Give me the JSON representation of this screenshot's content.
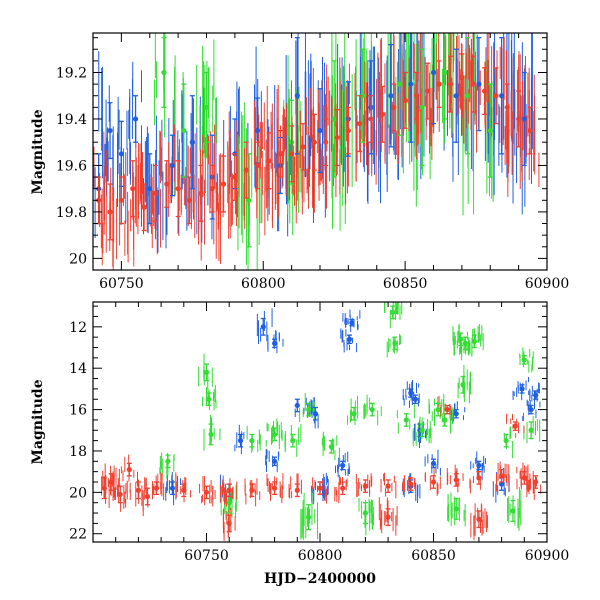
{
  "chart_data": [
    {
      "type": "scatter",
      "panel": "top",
      "xlabel": "",
      "ylabel": "Magnitude",
      "xlim": [
        60740,
        60900
      ],
      "ylim": [
        20.05,
        19.03
      ],
      "y_inverted": true,
      "xticks": [
        60750,
        60800,
        60850,
        60900
      ],
      "yticks": [
        19.2,
        19.4,
        19.6,
        19.8,
        20
      ],
      "ytick_labels": [
        "19.2",
        "19.4",
        "19.6",
        "19.8",
        "20"
      ],
      "grid": false,
      "series": [
        {
          "color": "#2060e0",
          "points": [
            [
              60742,
              19.7,
              0.15
            ],
            [
              60746,
              19.45,
              0.12
            ],
            [
              60750,
              19.55,
              0.14
            ],
            [
              60755,
              19.4,
              0.1
            ],
            [
              60760,
              19.7,
              0.15
            ],
            [
              60768,
              19.6,
              0.13
            ],
            [
              60775,
              19.5,
              0.2
            ],
            [
              60782,
              19.65,
              0.18
            ],
            [
              60790,
              19.55,
              0.15
            ],
            [
              60798,
              19.45,
              0.14
            ],
            [
              60806,
              19.6,
              0.12
            ],
            [
              60812,
              19.3,
              0.25
            ],
            [
              60820,
              19.45,
              0.18
            ],
            [
              60830,
              19.4,
              0.16
            ],
            [
              60838,
              19.35,
              0.2
            ],
            [
              60845,
              19.3,
              0.22
            ],
            [
              60852,
              19.25,
              0.25
            ],
            [
              60860,
              19.2,
              0.22
            ],
            [
              60868,
              19.3,
              0.2
            ],
            [
              60876,
              19.25,
              0.2
            ],
            [
              60884,
              19.3,
              0.25
            ],
            [
              60892,
              19.4,
              0.2
            ]
          ]
        },
        {
          "color": "#33dd33",
          "points": [
            [
              60765,
              19.2,
              0.15
            ],
            [
              60772,
              19.45,
              0.2
            ],
            [
              60780,
              19.35,
              0.15
            ],
            [
              60795,
              19.75,
              0.2
            ],
            [
              60810,
              19.5,
              0.18
            ],
            [
              60825,
              19.4,
              0.25
            ],
            [
              60835,
              19.3,
              0.2
            ],
            [
              60848,
              19.25,
              0.22
            ],
            [
              60856,
              19.35,
              0.25
            ],
            [
              60864,
              19.2,
              0.2
            ],
            [
              60872,
              19.3,
              0.25
            ],
            [
              60880,
              19.45,
              0.2
            ]
          ]
        },
        {
          "color": "#f04030",
          "points": [
            [
              60742,
              19.75,
              0.1
            ],
            [
              60746,
              19.8,
              0.12
            ],
            [
              60750,
              19.75,
              0.1
            ],
            [
              60754,
              19.7,
              0.12
            ],
            [
              60758,
              19.78,
              0.1
            ],
            [
              60762,
              19.72,
              0.12
            ],
            [
              60766,
              19.68,
              0.1
            ],
            [
              60770,
              19.7,
              0.12
            ],
            [
              60774,
              19.75,
              0.1
            ],
            [
              60778,
              19.72,
              0.12
            ],
            [
              60782,
              19.7,
              0.1
            ],
            [
              60786,
              19.68,
              0.12
            ],
            [
              60790,
              19.65,
              0.1
            ],
            [
              60794,
              19.62,
              0.12
            ],
            [
              60798,
              19.6,
              0.1
            ],
            [
              60802,
              19.58,
              0.12
            ],
            [
              60806,
              19.55,
              0.1
            ],
            [
              60810,
              19.55,
              0.12
            ],
            [
              60814,
              19.52,
              0.1
            ],
            [
              60818,
              19.5,
              0.12
            ],
            [
              60822,
              19.5,
              0.1
            ],
            [
              60826,
              19.48,
              0.12
            ],
            [
              60830,
              19.45,
              0.1
            ],
            [
              60834,
              19.42,
              0.12
            ],
            [
              60838,
              19.4,
              0.1
            ],
            [
              60842,
              19.38,
              0.12
            ],
            [
              60846,
              19.35,
              0.1
            ],
            [
              60850,
              19.32,
              0.12
            ],
            [
              60854,
              19.3,
              0.1
            ],
            [
              60858,
              19.28,
              0.12
            ],
            [
              60862,
              19.25,
              0.1
            ],
            [
              60866,
              19.25,
              0.12
            ],
            [
              60870,
              19.22,
              0.1
            ],
            [
              60874,
              19.25,
              0.12
            ],
            [
              60878,
              19.28,
              0.1
            ],
            [
              60882,
              19.3,
              0.12
            ],
            [
              60886,
              19.35,
              0.1
            ],
            [
              60890,
              19.4,
              0.12
            ],
            [
              60894,
              19.45,
              0.1
            ]
          ]
        }
      ]
    },
    {
      "type": "scatter",
      "panel": "bottom",
      "xlabel": "HJD−2400000",
      "ylabel": "Magnitude",
      "xlim": [
        60700,
        60900
      ],
      "ylim": [
        22.4,
        10.8
      ],
      "y_inverted": true,
      "xticks": [
        60750,
        60800,
        60850,
        60900
      ],
      "yticks": [
        12,
        14,
        16,
        18,
        20,
        22
      ],
      "ytick_labels": [
        "12",
        "14",
        "16",
        "18",
        "20",
        "22"
      ],
      "grid": false,
      "series": [
        {
          "color": "#2060e0",
          "points": [
            [
              60775,
              12.0,
              0.4
            ],
            [
              60780,
              12.8,
              0.2
            ],
            [
              60813,
              12.6,
              0.2
            ],
            [
              60814,
              11.8,
              0.15
            ],
            [
              60765,
              17.5,
              0.3
            ],
            [
              60790,
              15.8,
              0.3
            ],
            [
              60798,
              16.2,
              0.3
            ],
            [
              60840,
              15.2,
              0.2
            ],
            [
              60842,
              15.5,
              0.2
            ],
            [
              60844,
              17.0,
              0.3
            ],
            [
              60860,
              16.2,
              0.2
            ],
            [
              60889,
              15.0,
              0.2
            ],
            [
              60893,
              16.0,
              0.2
            ],
            [
              60895,
              15.3,
              0.2
            ],
            [
              60780,
              18.5,
              0.2
            ],
            [
              60810,
              18.7,
              0.2
            ],
            [
              60850,
              18.6,
              0.2
            ],
            [
              60870,
              18.7,
              0.2
            ],
            [
              60735,
              19.8,
              0.3
            ],
            [
              60760,
              19.9,
              0.3
            ],
            [
              60800,
              19.8,
              0.3
            ],
            [
              60840,
              19.7,
              0.3
            ],
            [
              60880,
              19.6,
              0.3
            ]
          ]
        },
        {
          "color": "#33dd33",
          "points": [
            [
              60750,
              14.2,
              0.4
            ],
            [
              60751,
              15.5,
              0.3
            ],
            [
              60752,
              17.2,
              0.5
            ],
            [
              60770,
              17.5,
              0.3
            ],
            [
              60780,
              17.2,
              0.3
            ],
            [
              60788,
              17.5,
              0.3
            ],
            [
              60795,
              16.0,
              0.3
            ],
            [
              60805,
              17.8,
              0.3
            ],
            [
              60815,
              16.2,
              0.3
            ],
            [
              60823,
              16.0,
              0.3
            ],
            [
              60832,
              11.3,
              0.3
            ],
            [
              60833,
              12.8,
              0.3
            ],
            [
              60838,
              16.5,
              0.3
            ],
            [
              60845,
              17.0,
              0.3
            ],
            [
              60852,
              16.0,
              0.3
            ],
            [
              60855,
              16.5,
              0.3
            ],
            [
              60862,
              12.6,
              0.3
            ],
            [
              60864,
              12.8,
              0.3
            ],
            [
              60868,
              12.7,
              0.3
            ],
            [
              60863,
              14.8,
              0.4
            ],
            [
              60882,
              17.5,
              0.3
            ],
            [
              60890,
              13.6,
              0.2
            ],
            [
              60893,
              17.0,
              0.4
            ],
            [
              60733,
              18.5,
              0.3
            ],
            [
              60760,
              20.5,
              0.5
            ],
            [
              60795,
              21.2,
              0.6
            ],
            [
              60820,
              21.0,
              0.5
            ],
            [
              60860,
              20.8,
              0.5
            ],
            [
              60885,
              20.9,
              0.5
            ]
          ]
        },
        {
          "color": "#f04030",
          "points": [
            [
              60705,
              19.8,
              0.5
            ],
            [
              60708,
              19.5,
              0.4
            ],
            [
              60712,
              20.1,
              0.4
            ],
            [
              60716,
              18.9,
              0.3
            ],
            [
              60720,
              19.9,
              0.4
            ],
            [
              60724,
              20.2,
              0.4
            ],
            [
              60728,
              19.8,
              0.3
            ],
            [
              60740,
              19.9,
              0.3
            ],
            [
              60750,
              20.0,
              0.3
            ],
            [
              60760,
              19.9,
              0.3
            ],
            [
              60770,
              19.9,
              0.3
            ],
            [
              60780,
              19.8,
              0.3
            ],
            [
              60790,
              19.9,
              0.3
            ],
            [
              60800,
              19.8,
              0.3
            ],
            [
              60810,
              19.8,
              0.3
            ],
            [
              60820,
              19.7,
              0.3
            ],
            [
              60830,
              19.7,
              0.3
            ],
            [
              60840,
              19.6,
              0.3
            ],
            [
              60850,
              19.5,
              0.3
            ],
            [
              60856,
              16.0,
              0.2
            ],
            [
              60860,
              19.4,
              0.3
            ],
            [
              60870,
              19.3,
              0.3
            ],
            [
              60880,
              19.2,
              0.3
            ],
            [
              60886,
              16.8,
              0.2
            ],
            [
              60890,
              19.3,
              0.3
            ],
            [
              60895,
              19.5,
              0.3
            ],
            [
              60760,
              21.5,
              0.4
            ],
            [
              60830,
              21.2,
              0.4
            ],
            [
              60870,
              21.3,
              0.4
            ]
          ]
        }
      ]
    }
  ]
}
